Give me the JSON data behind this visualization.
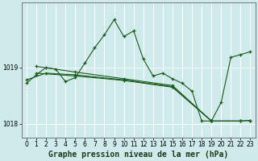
{
  "title": "Graphe pression niveau de la mer (hPa)",
  "bg_color": "#ceeaea",
  "grid_color": "#ffffff",
  "line_color": "#1a5c1a",
  "spine_color": "#666666",
  "series": [
    {
      "x": [
        0,
        1,
        2,
        3,
        4,
        5,
        6,
        7,
        8,
        9,
        10,
        11,
        12,
        13,
        14,
        15,
        16,
        17,
        18,
        19,
        20,
        21,
        22,
        23
      ],
      "y": [
        1018.72,
        1018.87,
        1019.0,
        1018.97,
        1018.75,
        1018.82,
        1019.08,
        1019.35,
        1019.58,
        1019.85,
        1019.55,
        1019.65,
        1019.15,
        1018.85,
        1018.9,
        1018.8,
        1018.72,
        1018.58,
        1018.05,
        1018.05,
        1018.38,
        1019.18,
        1019.23,
        1019.28
      ]
    },
    {
      "x": [
        1,
        5,
        10,
        15,
        19,
        22,
        23
      ],
      "y": [
        1019.02,
        1018.92,
        1018.8,
        1018.68,
        1018.05,
        1018.05,
        1018.06
      ]
    },
    {
      "x": [
        1,
        5,
        10,
        15,
        19,
        22,
        23
      ],
      "y": [
        1018.9,
        1018.85,
        1018.77,
        1018.65,
        1018.05,
        1018.05,
        1018.06
      ]
    },
    {
      "x": [
        0,
        2,
        5,
        10,
        15,
        19
      ],
      "y": [
        1018.78,
        1018.9,
        1018.87,
        1018.78,
        1018.66,
        1018.05
      ]
    }
  ],
  "ylim": [
    1017.75,
    1020.15
  ],
  "yticks": [
    1018,
    1019
  ],
  "ytick_labels": [
    "1018",
    "1019"
  ],
  "xlim": [
    -0.5,
    23.5
  ],
  "xticks": [
    0,
    1,
    2,
    3,
    4,
    5,
    6,
    7,
    8,
    9,
    10,
    11,
    12,
    13,
    14,
    15,
    16,
    17,
    18,
    19,
    20,
    21,
    22,
    23
  ],
  "tick_fontsize": 5.5,
  "title_fontsize": 7,
  "figsize": [
    3.2,
    2.0
  ],
  "dpi": 100
}
